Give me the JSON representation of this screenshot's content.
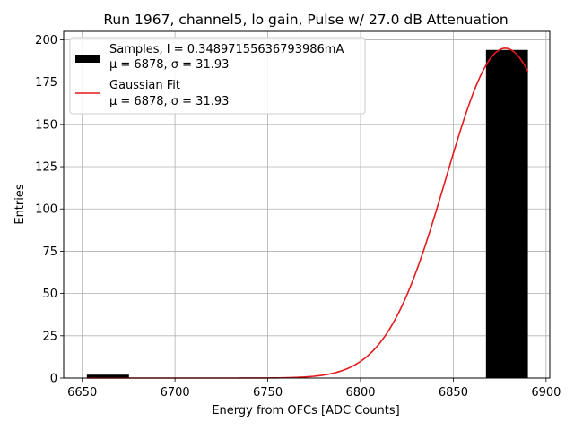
{
  "chart_data": {
    "type": "bar",
    "title": "Run 1967, channel5, lo gain, Pulse w/ 27.0 dB Attenuation",
    "xlabel": "Energy from OFCs [ADC Counts]",
    "ylabel": "Entries",
    "xlim": [
      6640,
      6902
    ],
    "ylim": [
      0,
      205
    ],
    "xticks": [
      6650,
      6700,
      6750,
      6800,
      6850,
      6900
    ],
    "yticks": [
      0,
      25,
      50,
      75,
      100,
      125,
      150,
      175,
      200
    ],
    "grid": true,
    "legend_position": "top-left",
    "histogram": {
      "name": "Samples, I = 0.34897155636793986mA",
      "stats": "μ = 6878, σ = 31.93",
      "color": "#000000",
      "bins": [
        {
          "start": 6652.5,
          "end": 6675.2,
          "value": 2
        },
        {
          "start": 6675.2,
          "end": 6697.8,
          "value": 0
        },
        {
          "start": 6697.8,
          "end": 6720.4,
          "value": 0
        },
        {
          "start": 6720.4,
          "end": 6743.0,
          "value": 0
        },
        {
          "start": 6743.0,
          "end": 6765.6,
          "value": 0
        },
        {
          "start": 6765.6,
          "end": 6788.2,
          "value": 0
        },
        {
          "start": 6788.2,
          "end": 6810.8,
          "value": 0
        },
        {
          "start": 6810.8,
          "end": 6833.4,
          "value": 0
        },
        {
          "start": 6833.4,
          "end": 6856.0,
          "value": 0
        },
        {
          "start": 6856.0,
          "end": 6867.6,
          "value": 0
        },
        {
          "start": 6867.6,
          "end": 6890.2,
          "value": 194
        }
      ]
    },
    "fit": {
      "name": "Gaussian Fit",
      "stats": "μ = 6878, σ = 31.93",
      "color": "#e41a1c",
      "amplitude": 195,
      "mu": 6878,
      "sigma": 31.93,
      "x_range": [
        6652.5,
        6890.2
      ]
    }
  }
}
